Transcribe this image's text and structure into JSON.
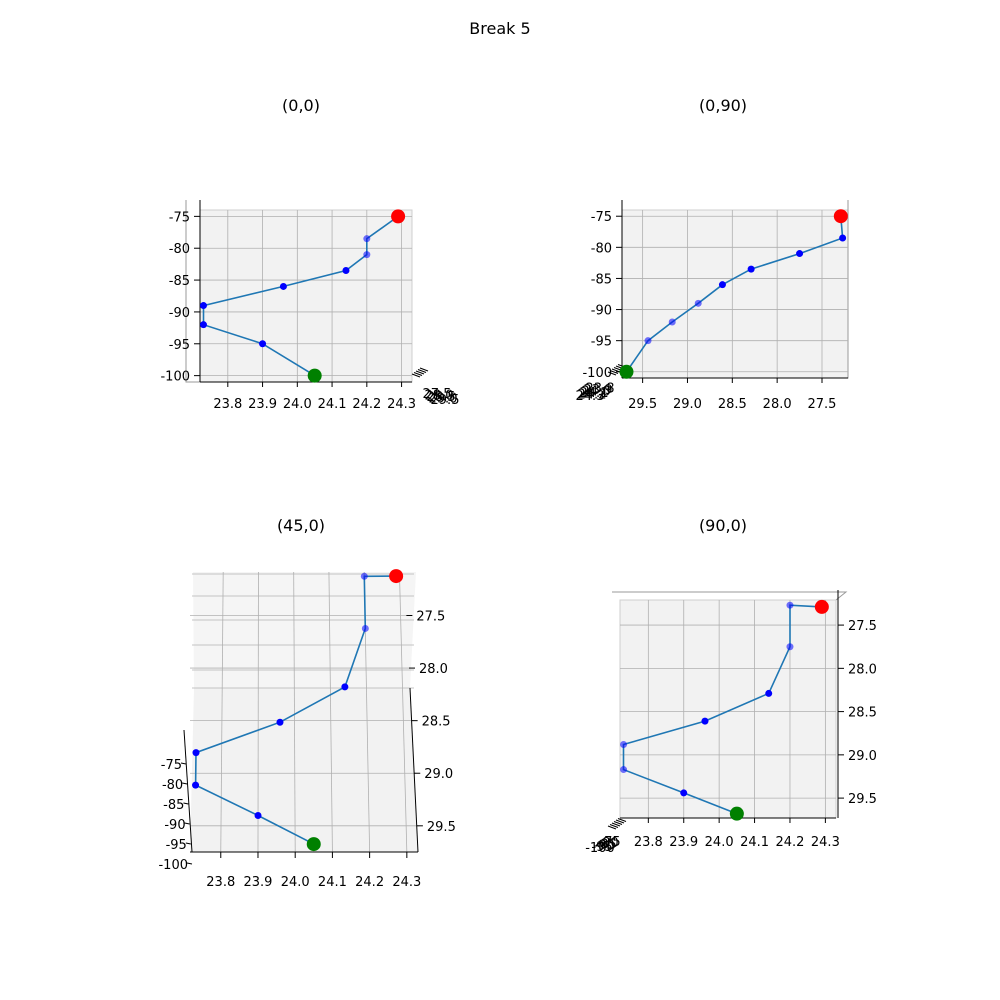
{
  "figure_title": "Break 5",
  "colors": {
    "line": "#1f77b4",
    "point": "#0000ff",
    "start": "#008000",
    "end": "#ff0000",
    "pane": "#f2f2f2",
    "grid": "#b0b0b0"
  },
  "chart_data": [
    {
      "type": "line",
      "panel": "top-left",
      "title": "(0,0)",
      "view": "elev 0, azim 0",
      "xlabel": "",
      "ylabel": "",
      "x_ticks": [
        "23.8",
        "23.9",
        "24.0",
        "24.1",
        "24.2",
        "24.3"
      ],
      "y_ticks": [
        "-75",
        "-80",
        "-85",
        "-90",
        "-95",
        "-100"
      ],
      "depth_ticks_overlapping": [
        "27.5",
        "28.0",
        "28.5",
        "29.0",
        "29.5"
      ],
      "xlim": [
        23.72,
        24.33
      ],
      "ylim": [
        -101,
        -74
      ],
      "grid": true,
      "series": [
        {
          "x": [
            24.05,
            23.9,
            23.73,
            23.73,
            23.96,
            24.14,
            24.2,
            24.2,
            24.29
          ],
          "y": [
            -100.0,
            -95.0,
            -92.0,
            -89.0,
            -86.0,
            -83.5,
            -81.0,
            -78.5,
            -75.0
          ],
          "start_point": {
            "x": 24.05,
            "y": -100.0
          },
          "end_point": {
            "x": 24.29,
            "y": -75.0
          }
        }
      ]
    },
    {
      "type": "line",
      "panel": "top-right",
      "title": "(0,90)",
      "view": "elev 0, azim 90",
      "xlabel": "",
      "ylabel": "",
      "x_ticks": [
        "29.5",
        "29.0",
        "28.5",
        "28.0",
        "27.5"
      ],
      "y_ticks": [
        "-75",
        "-80",
        "-85",
        "-90",
        "-95",
        "-100"
      ],
      "depth_ticks_overlapping": [
        "24.3",
        "24.2",
        "24.1",
        "24.0",
        "23.9",
        "23.8"
      ],
      "xlim": [
        29.73,
        27.21
      ],
      "ylim": [
        -101,
        -74
      ],
      "grid": true,
      "series": [
        {
          "x": [
            29.68,
            29.44,
            29.17,
            28.88,
            28.61,
            28.29,
            27.75,
            27.27,
            27.29
          ],
          "y": [
            -100.0,
            -95.0,
            -92.0,
            -89.0,
            -86.0,
            -83.5,
            -81.0,
            -78.5,
            -75.0
          ],
          "start_point": {
            "x": 29.68,
            "y": -100.0
          },
          "end_point": {
            "x": 27.29,
            "y": -75.0
          }
        }
      ]
    },
    {
      "type": "line",
      "panel": "bottom-left",
      "title": "(45,0)",
      "view": "elev 45, azim 0",
      "xlabel": "",
      "ylabel": "",
      "x_ticks": [
        "23.8",
        "23.9",
        "24.0",
        "24.1",
        "24.2",
        "24.3"
      ],
      "y_ticks": [
        "27.5",
        "28.0",
        "28.5",
        "29.0",
        "29.5"
      ],
      "z_ticks": [
        "-75",
        "-80",
        "-85",
        "-90",
        "-95",
        "-100"
      ],
      "grid": true,
      "series": [
        {
          "x": [
            24.05,
            23.9,
            23.73,
            23.73,
            23.96,
            24.14,
            24.2,
            24.2,
            24.29
          ],
          "y": [
            29.68,
            29.44,
            29.17,
            28.88,
            28.61,
            28.29,
            27.75,
            27.27,
            27.29
          ],
          "z": [
            -100.0,
            -95.0,
            -92.0,
            -89.0,
            -86.0,
            -83.5,
            -81.0,
            -78.5,
            -75.0
          ]
        }
      ]
    },
    {
      "type": "line",
      "panel": "bottom-right",
      "title": "(90,0)",
      "view": "elev 90, azim 0",
      "xlabel": "",
      "ylabel": "",
      "x_ticks": [
        "23.8",
        "23.9",
        "24.0",
        "24.1",
        "24.2",
        "24.3"
      ],
      "y_ticks": [
        "27.5",
        "28.0",
        "28.5",
        "29.0",
        "29.5"
      ],
      "depth_ticks_overlapping": [
        "-100",
        "-95",
        "-90",
        "-85",
        "-80",
        "-75"
      ],
      "xlim": [
        23.72,
        24.33
      ],
      "ylim": [
        29.73,
        27.21
      ],
      "grid": true,
      "series": [
        {
          "x": [
            24.05,
            23.9,
            23.73,
            23.73,
            23.96,
            24.14,
            24.2,
            24.2,
            24.29
          ],
          "y": [
            29.68,
            29.44,
            29.17,
            28.88,
            28.61,
            28.29,
            27.75,
            27.27,
            27.29
          ],
          "start_point": {
            "x": 24.05,
            "y": 29.68
          },
          "end_point": {
            "x": 24.29,
            "y": 27.29
          }
        }
      ]
    }
  ]
}
